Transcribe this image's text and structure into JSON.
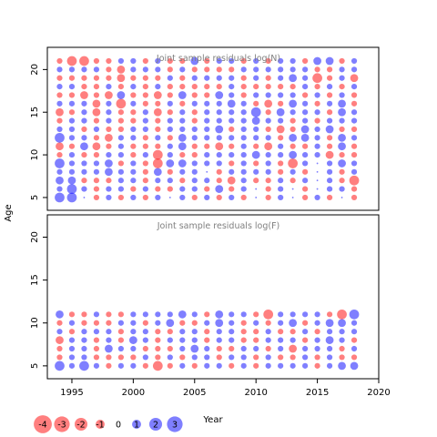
{
  "chart_data": {
    "type": "scatter",
    "encoding": "bubble",
    "x_axis": {
      "label": "Year",
      "range": [
        1993,
        2020
      ],
      "ticks": [
        1995,
        2000,
        2005,
        2010,
        2015,
        2020
      ],
      "tick_labels": [
        "1995",
        "2000",
        "2005",
        "2010",
        "2015",
        "2020"
      ]
    },
    "y_axis": {
      "label": "Age",
      "range": [
        3.5,
        22.6
      ],
      "ticks": [
        5,
        10,
        15,
        20
      ],
      "tick_labels": [
        "5",
        "10",
        "15",
        "20"
      ]
    },
    "colors": {
      "negative": "#ff0000",
      "positive": "#0000ff",
      "title": "#7f7f7f"
    },
    "legend": {
      "placement": "bottom-left",
      "values": [
        -4,
        -3,
        -2,
        -1,
        0,
        1,
        2,
        3
      ],
      "labels": [
        "-4",
        "-3",
        "-2",
        "-1",
        "0",
        "1",
        "2",
        "3"
      ]
    },
    "panels": [
      {
        "title": "Joint sample residuals log(N)",
        "years": [
          1994,
          1995,
          1996,
          1997,
          1998,
          1999,
          2000,
          2001,
          2002,
          2003,
          2004,
          2005,
          2006,
          2007,
          2008,
          2009,
          2010,
          2011,
          2012,
          2013,
          2014,
          2015,
          2016,
          2017,
          2018
        ],
        "ages": [
          5,
          6,
          7,
          8,
          9,
          10,
          11,
          12,
          13,
          14,
          15,
          16,
          17,
          18,
          19,
          20,
          21
        ],
        "residuals": [
          [
            3,
            3,
            0,
            -1,
            1,
            -1,
            1,
            -1,
            1,
            0,
            1,
            -1,
            1,
            -1,
            1,
            -1,
            0,
            -1,
            1,
            0,
            -1,
            1,
            -1,
            0,
            -1
          ],
          [
            1,
            3,
            1,
            -1,
            1,
            1,
            -1,
            1,
            -1,
            -1,
            1,
            1,
            -1,
            2,
            -1,
            1,
            0,
            -1,
            1,
            0,
            -1,
            0,
            1,
            1,
            -1
          ],
          [
            2,
            2,
            -1,
            -1,
            -1,
            1,
            1,
            -1,
            1,
            1,
            -1,
            1,
            1,
            -1,
            -2,
            1,
            -1,
            -1,
            1,
            -1,
            1,
            0,
            1,
            -1,
            -3
          ],
          [
            1,
            1,
            1,
            1,
            2,
            1,
            1,
            -1,
            2,
            -1,
            1,
            1,
            0,
            -1,
            1,
            1,
            1,
            1,
            -1,
            1,
            -1,
            0,
            1,
            -1,
            1
          ],
          [
            3,
            1,
            1,
            1,
            2,
            -1,
            1,
            -1,
            -3,
            2,
            2,
            1,
            1,
            1,
            -1,
            1,
            -1,
            1,
            -1,
            -3,
            1,
            0,
            1,
            2,
            1
          ],
          [
            -1,
            1,
            -1,
            -1,
            1,
            1,
            -1,
            1,
            -3,
            1,
            -1,
            -1,
            1,
            1,
            1,
            1,
            2,
            1,
            1,
            2,
            1,
            1,
            -2,
            -1,
            -1
          ],
          [
            -2,
            -1,
            2,
            -2,
            -1,
            1,
            -1,
            -1,
            -1,
            1,
            2,
            -1,
            -1,
            -2,
            -1,
            1,
            -1,
            -2,
            1,
            -1,
            -1,
            1,
            -1,
            2,
            -1
          ],
          [
            3,
            1,
            1,
            -1,
            -2,
            1,
            1,
            -1,
            1,
            -1,
            2,
            1,
            1,
            1,
            1,
            1,
            1,
            1,
            -1,
            2,
            2,
            1,
            -1,
            2,
            1
          ],
          [
            1,
            1,
            -1,
            1,
            -1,
            -1,
            1,
            1,
            -1,
            1,
            1,
            1,
            1,
            2,
            -1,
            1,
            1,
            -1,
            -2,
            -1,
            2,
            1,
            2,
            -1,
            -1
          ],
          [
            -1,
            1,
            1,
            -1,
            1,
            -1,
            -1,
            1,
            -1,
            1,
            1,
            -1,
            1,
            1,
            1,
            1,
            2,
            1,
            1,
            -1,
            1,
            -1,
            1,
            1,
            1
          ],
          [
            -2,
            -1,
            1,
            -2,
            1,
            -1,
            -1,
            1,
            -2,
            -1,
            1,
            -1,
            1,
            1,
            1,
            1,
            3,
            -1,
            2,
            1,
            1,
            1,
            -1,
            2,
            1
          ],
          [
            1,
            1,
            1,
            -2,
            1,
            -3,
            1,
            -1,
            -1,
            1,
            -1,
            1,
            1,
            1,
            2,
            1,
            -1,
            -2,
            -1,
            2,
            1,
            -1,
            1,
            2,
            -1
          ],
          [
            -1,
            -1,
            -2,
            -1,
            -2,
            2,
            -1,
            -1,
            -2,
            -1,
            2,
            -1,
            -1,
            2,
            1,
            -1,
            1,
            1,
            1,
            1,
            -1,
            1,
            -1,
            1,
            -1
          ],
          [
            1,
            1,
            -1,
            -1,
            1,
            -1,
            1,
            -1,
            1,
            -1,
            -1,
            -1,
            -1,
            -1,
            1,
            -1,
            -1,
            -1,
            -1,
            -1,
            1,
            -1,
            1,
            -1,
            1
          ],
          [
            -1,
            -1,
            -1,
            -1,
            -1,
            -2,
            -1,
            -1,
            -1,
            1,
            -1,
            1,
            1,
            1,
            1,
            -1,
            1,
            -1,
            1,
            2,
            1,
            -3,
            -1,
            1,
            -2
          ],
          [
            1,
            1,
            1,
            1,
            -1,
            -2,
            1,
            1,
            1,
            -1,
            1,
            -1,
            -1,
            -1,
            -1,
            1,
            1,
            1,
            1,
            1,
            1,
            -1,
            -1,
            1,
            1
          ],
          [
            -1,
            -3,
            -3,
            -1,
            -1,
            1,
            1,
            -1,
            1,
            -1,
            -1,
            2,
            -1,
            1,
            1,
            -1,
            1,
            -1,
            1,
            1,
            -1,
            2,
            2,
            -1,
            1
          ]
        ]
      },
      {
        "title": "Joint sample residuals log(F)",
        "years": [
          1994,
          1995,
          1996,
          1997,
          1998,
          1999,
          2000,
          2001,
          2002,
          2003,
          2004,
          2005,
          2006,
          2007,
          2008,
          2009,
          2010,
          2011,
          2012,
          2013,
          2014,
          2015,
          2016,
          2017,
          2018
        ],
        "ages": [
          5,
          6,
          7,
          8,
          9,
          10,
          11
        ],
        "residuals": [
          [
            3,
            1,
            3,
            1,
            -1,
            1,
            1,
            -1,
            -3,
            -1,
            1,
            -1,
            1,
            1,
            -1,
            1,
            -1,
            1,
            1,
            1,
            1,
            -1,
            1,
            2,
            2
          ],
          [
            -1,
            1,
            1,
            -1,
            -1,
            -1,
            -1,
            1,
            -1,
            1,
            -1,
            1,
            1,
            -1,
            1,
            1,
            -1,
            1,
            -1,
            -1,
            1,
            -1,
            1,
            -1,
            -1
          ],
          [
            -1,
            1,
            1,
            -1,
            2,
            1,
            1,
            -1,
            -1,
            -1,
            1,
            2,
            1,
            -1,
            -1,
            1,
            1,
            -1,
            1,
            -2,
            1,
            1,
            1,
            -1,
            1
          ],
          [
            -2,
            1,
            1,
            -1,
            1,
            -1,
            2,
            1,
            -1,
            1,
            1,
            1,
            -1,
            1,
            1,
            -1,
            -1,
            1,
            1,
            1,
            -1,
            1,
            2,
            1,
            -1
          ],
          [
            1,
            -1,
            1,
            1,
            1,
            -1,
            1,
            1,
            -1,
            -1,
            1,
            1,
            -1,
            1,
            1,
            -1,
            -1,
            1,
            -1,
            -1,
            1,
            -1,
            1,
            1,
            1
          ],
          [
            -1,
            1,
            -1,
            -1,
            -1,
            1,
            1,
            -1,
            1,
            2,
            -1,
            -1,
            1,
            2,
            1,
            -1,
            1,
            -1,
            1,
            2,
            -1,
            1,
            2,
            2,
            1
          ],
          [
            2,
            -1,
            -1,
            1,
            -1,
            -1,
            1,
            1,
            1,
            1,
            2,
            1,
            -1,
            2,
            1,
            1,
            -1,
            -3,
            1,
            1,
            1,
            1,
            -1,
            -3,
            3
          ]
        ]
      }
    ]
  }
}
